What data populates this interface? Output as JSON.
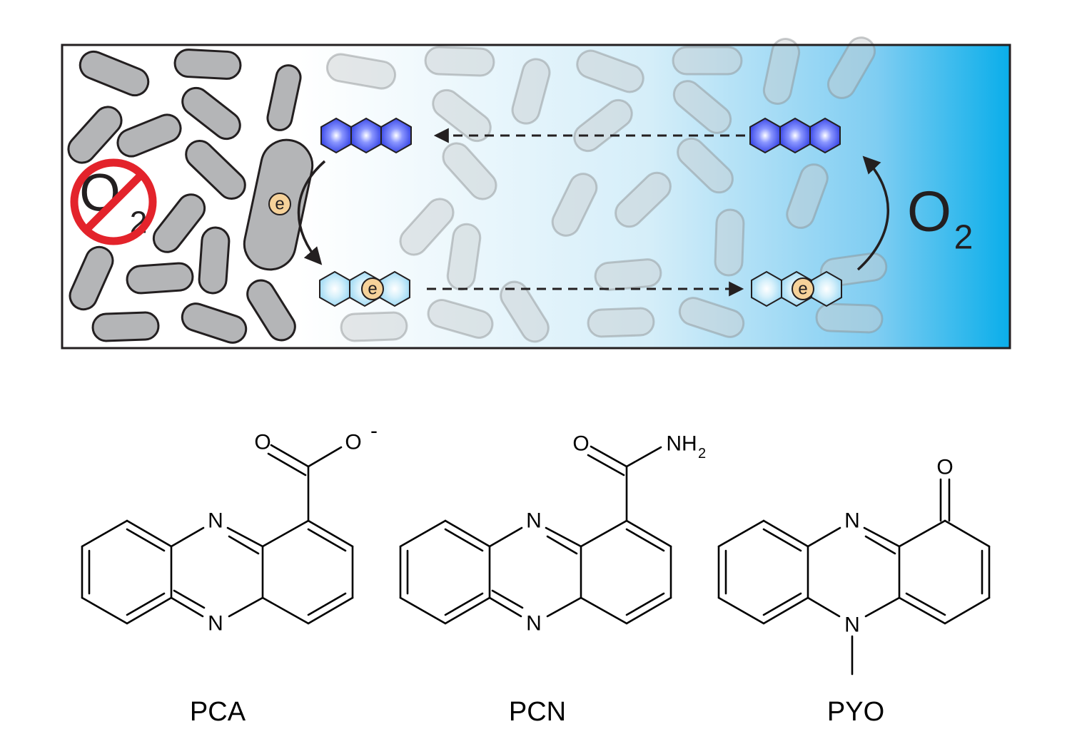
{
  "diagram": {
    "no_oxygen_label": "O",
    "no_oxygen_subscript": "2",
    "oxygen_label": "O",
    "oxygen_subscript": "2",
    "electron_label": "e",
    "colors": {
      "gradient_start": "#ffffff",
      "gradient_end": "#0aaeea",
      "oxidized_phenazine": "#3a4cf0",
      "reduced_phenazine": "#a8dcf6",
      "electron": "#f6d29a",
      "no_symbol": "#e3232b",
      "cell": "#b4b5b7"
    }
  },
  "molecules": {
    "pca": {
      "name": "PCA",
      "atom_o_carbonyl": "O",
      "atom_o_anion": "O",
      "charge": "-",
      "atom_n_top": "N",
      "atom_n_bottom": "N"
    },
    "pcn": {
      "name": "PCN",
      "atom_o_carbonyl": "O",
      "atom_nh": "NH",
      "atom_nh_subscript": "2",
      "atom_n_top": "N",
      "atom_n_bottom": "N"
    },
    "pyo": {
      "name": "PYO",
      "atom_o": "O",
      "atom_n_top": "N",
      "atom_n_bottom": "N"
    }
  }
}
